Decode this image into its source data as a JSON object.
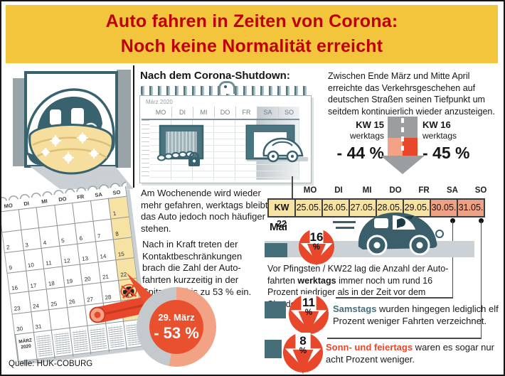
{
  "colors": {
    "header_bg": "#F2C53D",
    "header_text": "#C00000",
    "teal": "#456E78",
    "badge_red": "#E8472B",
    "salmon": "#F2A285",
    "table_yellow": "#F6E3A3",
    "table_weekend": "#EFA183",
    "road_gray": "#CBD1D5",
    "arrow_gray": "#9A9EA1"
  },
  "header": {
    "line1": "Auto fahren in Zeiten von Corona:",
    "line2": "Noch keine Normalität erreicht"
  },
  "middle": {
    "title": "Nach dem Corona-Shutdown:",
    "planner": {
      "month": "März 2020",
      "days": [
        "MO",
        "DI",
        "MI",
        "DO",
        "FR",
        "SA",
        "SO"
      ]
    },
    "para_weekend": "Am Wochenende wird wieder mehr gefahren, werktags bleibt das Auto jedoch noch häufiger stehen.",
    "para_contact": "Nach in Kraft treten der Kontaktbeschränkungen brach die Zahl der Auto-fahrten kurzzeitig in der Spitze um bis zu 53 % ein."
  },
  "left": {
    "calendar": {
      "days": [
        "MO",
        "DI",
        "MI",
        "DO",
        "FR",
        "SA",
        "SO"
      ],
      "rows": [
        [
          "",
          "",
          "",
          "",
          "",
          "",
          "1"
        ],
        [
          "2",
          "3",
          "4",
          "5",
          "6",
          "7",
          "8"
        ],
        [
          "9",
          "10",
          "11",
          "12",
          "13",
          "14",
          "15"
        ],
        [
          "16",
          "17",
          "18",
          "19",
          "20",
          "21",
          "22"
        ],
        [
          "23",
          "24",
          "25",
          "26",
          "27",
          "28",
          "29"
        ],
        [
          "30",
          "31",
          "",
          "",
          "",
          "",
          ""
        ]
      ],
      "month_line1": "MÄRZ",
      "month_line2": "2020",
      "highlight": "29"
    },
    "donut": {
      "date": "29. März",
      "value": "- 53 %",
      "pct": 53
    }
  },
  "right": {
    "intro": "Zwischen Ende März und Mitte April erreichte das Verkehrsgeschehen auf deutschen Straßen seinen Tiefpunkt um seitdem kontinuierlich wieder anzusteigen.",
    "kw15": {
      "label": "KW 15",
      "sub": "werktags",
      "value": "- 44 %"
    },
    "kw16": {
      "label": "KW 16",
      "sub": "werktags",
      "value": "- 45 %"
    },
    "table": {
      "week_label": "KW 22",
      "month": "Mai",
      "days": [
        "MO",
        "DI",
        "MI",
        "DO",
        "FR",
        "SA",
        "SO"
      ],
      "dates": [
        "25.05.",
        "26.05.",
        "27.05.",
        "28.05.",
        "29.05.",
        "30.05.",
        "31.05."
      ],
      "weekend_start_index": 5
    },
    "stat16": {
      "value": "16",
      "unit": "%",
      "pre": "Vor Pfingsten / KW22 lag die Anzahl der Auto-fahrten ",
      "bold": "werktags",
      "post": " immer noch um rund 16 Prozent niedriger als in der Zeit vor dem Shutdown."
    },
    "stat11": {
      "value": "11",
      "unit": "%",
      "lead": "Samstags",
      "post": " wurden hingegen lediglich elf Prozent weniger Fahrten verzeichnet."
    },
    "stat8": {
      "value": "8",
      "unit": "%",
      "lead": "Sonn- und feiertags",
      "post": " waren es sogar nur acht Prozent weniger."
    }
  },
  "source": "Quelle: HUK-COBURG"
}
